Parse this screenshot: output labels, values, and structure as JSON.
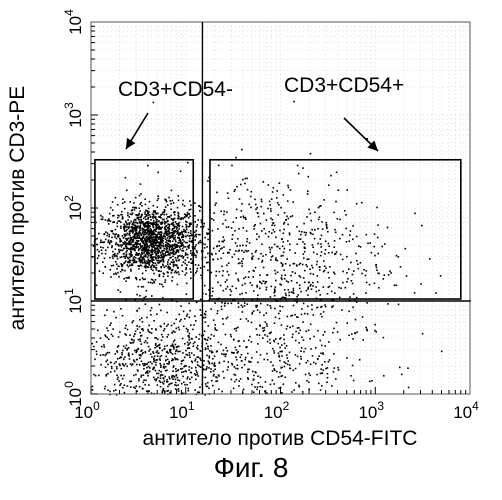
{
  "chart_data": {
    "type": "scatter",
    "title": "",
    "xlabel": "антитело против CD54-FITC",
    "ylabel": "антитело против CD3-PE",
    "x_scale": "log",
    "y_scale": "log",
    "xlim": [
      1,
      10000
    ],
    "ylim": [
      1,
      10000
    ],
    "x_ticks": [
      {
        "base": "10",
        "exp": "0",
        "value": 1
      },
      {
        "base": "10",
        "exp": "1",
        "value": 10
      },
      {
        "base": "10",
        "exp": "2",
        "value": 100
      },
      {
        "base": "10",
        "exp": "3",
        "value": 1000
      },
      {
        "base": "10",
        "exp": "4",
        "value": 10000
      }
    ],
    "y_ticks": [
      {
        "base": "10",
        "exp": "0",
        "value": 1
      },
      {
        "base": "10",
        "exp": "1",
        "value": 10
      },
      {
        "base": "10",
        "exp": "2",
        "value": 100
      },
      {
        "base": "10",
        "exp": "3",
        "value": 1000
      },
      {
        "base": "10",
        "exp": "4",
        "value": 10000
      }
    ],
    "quadrant_divider": {
      "x": 15,
      "y": 10
    },
    "gates": [
      {
        "label": "CD3+CD54-",
        "x_range": [
          1.1,
          12
        ],
        "y_range": [
          10.5,
          330
        ]
      },
      {
        "label": "CD3+CD54+",
        "x_range": [
          18,
          8000
        ],
        "y_range": [
          10.5,
          330
        ]
      }
    ],
    "populations": [
      {
        "name": "",
        "center_x": 4.2,
        "center_y": 45,
        "spread_log": 0.22,
        "count": 1600
      },
      {
        "name": "",
        "center_x": 80,
        "center_y": 30,
        "spread_log": 0.55,
        "count": 750
      },
      {
        "name": "",
        "center_x": 5,
        "center_y": 2.2,
        "spread_log": 0.32,
        "count": 650
      },
      {
        "name": "",
        "center_x": 60,
        "center_y": 2.5,
        "spread_log": 0.5,
        "count": 500
      }
    ],
    "grid": true,
    "legend": "none"
  },
  "figure": {
    "caption": "Фиг. 8"
  },
  "colors": {
    "points": "#000000",
    "grid": "#c8c8c8",
    "background": "#ffffff"
  }
}
